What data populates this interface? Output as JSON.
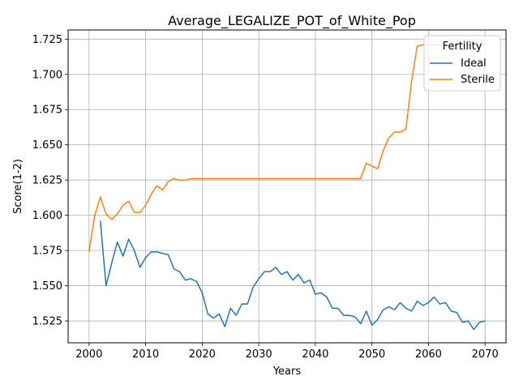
{
  "chart_data": {
    "type": "line",
    "title": "Average_LEGALIZE_POT_of_White_Pop",
    "xlabel": "Years",
    "ylabel": "Score(1-2)",
    "xlim": [
      1996.3,
      2073.7
    ],
    "ylim": [
      1.5095,
      1.7315
    ],
    "xticks": [
      2000,
      2010,
      2020,
      2030,
      2040,
      2050,
      2060,
      2070
    ],
    "yticks": [
      1.525,
      1.55,
      1.575,
      1.6,
      1.625,
      1.65,
      1.675,
      1.7,
      1.725
    ],
    "grid": true,
    "legend": {
      "title": "Fertility",
      "placement": "upper-right"
    },
    "series": [
      {
        "name": "Ideal",
        "color": "#1f77b4",
        "x": [
          2002,
          2003,
          2004,
          2005,
          2006,
          2007,
          2008,
          2009,
          2010,
          2011,
          2012,
          2013,
          2014,
          2015,
          2016,
          2017,
          2018,
          2019,
          2020,
          2021,
          2022,
          2023,
          2024,
          2025,
          2026,
          2027,
          2028,
          2029,
          2030,
          2031,
          2032,
          2033,
          2034,
          2035,
          2036,
          2037,
          2038,
          2039,
          2040,
          2041,
          2042,
          2043,
          2044,
          2045,
          2046,
          2047,
          2048,
          2049,
          2050,
          2051,
          2052,
          2053,
          2054,
          2055,
          2056,
          2057,
          2058,
          2059,
          2060,
          2061,
          2062,
          2063,
          2064,
          2065,
          2066,
          2067,
          2068,
          2069,
          2070
        ],
        "values": [
          1.596,
          1.55,
          1.566,
          1.581,
          1.571,
          1.583,
          1.575,
          1.563,
          1.57,
          1.574,
          1.574,
          1.573,
          1.572,
          1.562,
          1.56,
          1.554,
          1.555,
          1.553,
          1.545,
          1.53,
          1.527,
          1.53,
          1.521,
          1.534,
          1.529,
          1.537,
          1.537,
          1.549,
          1.555,
          1.56,
          1.56,
          1.563,
          1.558,
          1.56,
          1.554,
          1.558,
          1.552,
          1.554,
          1.544,
          1.545,
          1.542,
          1.534,
          1.534,
          1.529,
          1.529,
          1.528,
          1.523,
          1.532,
          1.522,
          1.526,
          1.533,
          1.535,
          1.533,
          1.538,
          1.534,
          1.532,
          1.539,
          1.536,
          1.538,
          1.542,
          1.537,
          1.538,
          1.532,
          1.531,
          1.524,
          1.525,
          1.519,
          1.524,
          1.525
        ]
      },
      {
        "name": "Sterile",
        "color": "#ff7f0e",
        "x": [
          2000,
          2001,
          2002,
          2003,
          2004,
          2005,
          2006,
          2007,
          2008,
          2009,
          2010,
          2011,
          2012,
          2013,
          2014,
          2015,
          2016,
          2017,
          2018,
          2019,
          2020,
          2021,
          2022,
          2023,
          2024,
          2025,
          2026,
          2027,
          2028,
          2029,
          2030,
          2031,
          2032,
          2033,
          2034,
          2035,
          2036,
          2037,
          2038,
          2039,
          2040,
          2041,
          2042,
          2043,
          2044,
          2045,
          2046,
          2047,
          2048,
          2049,
          2050,
          2051,
          2052,
          2053,
          2054,
          2055,
          2056,
          2057,
          2058,
          2059,
          2060,
          2061,
          2062,
          2063,
          2064,
          2065,
          2066,
          2067,
          2068,
          2069,
          2070
        ],
        "values": [
          1.574,
          1.6,
          1.613,
          1.601,
          1.597,
          1.601,
          1.607,
          1.61,
          1.602,
          1.602,
          1.607,
          1.615,
          1.621,
          1.618,
          1.624,
          1.626,
          1.625,
          1.625,
          1.626,
          1.626,
          1.626,
          1.626,
          1.626,
          1.626,
          1.626,
          1.626,
          1.626,
          1.626,
          1.626,
          1.626,
          1.626,
          1.626,
          1.626,
          1.626,
          1.626,
          1.626,
          1.626,
          1.626,
          1.626,
          1.626,
          1.626,
          1.626,
          1.626,
          1.626,
          1.626,
          1.626,
          1.626,
          1.626,
          1.626,
          1.637,
          1.635,
          1.633,
          1.646,
          1.655,
          1.659,
          1.659,
          1.661,
          1.695,
          1.72,
          1.721,
          1.721,
          1.721,
          1.721,
          1.721,
          1.721,
          1.721,
          1.721,
          1.721,
          1.721,
          1.721,
          1.721
        ]
      }
    ]
  }
}
